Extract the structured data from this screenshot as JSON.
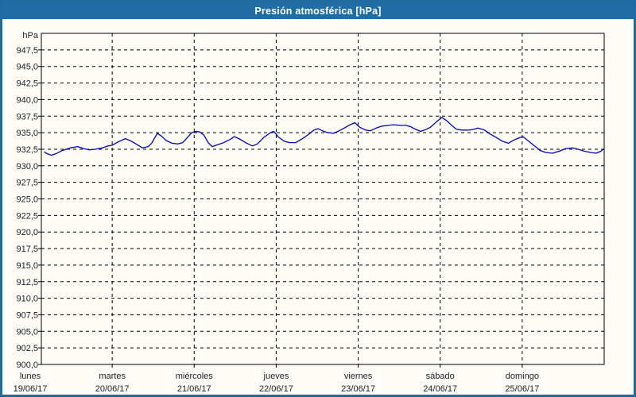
{
  "window": {
    "title": "Presión atmosférica [hPa]"
  },
  "colors": {
    "titlebar_bg": "#1E6EA5",
    "window_border": "#1E6C9F",
    "background": "#FDFDF5",
    "line": "#0000C8",
    "grid": "#000000",
    "text": "#20202A",
    "title_text": "#FFFFFF"
  },
  "chart_data": {
    "type": "line",
    "title": "Presión atmosférica [hPa]",
    "y_axis": {
      "label": "hPa",
      "min": 900,
      "max": 950,
      "tick_step": 2.5,
      "tick_labels": [
        "947,5",
        "945,0",
        "942,5",
        "940,0",
        "937,5",
        "935,0",
        "932,5",
        "930,0",
        "927,5",
        "925,0",
        "922,5",
        "920,0",
        "917,5",
        "915,0",
        "912,5",
        "910,0",
        "907,5",
        "905,0",
        "902,5",
        "900,0"
      ]
    },
    "x_axis": {
      "days": [
        {
          "name": "lunes",
          "date": "19/06/17"
        },
        {
          "name": "martes",
          "date": "20/06/17"
        },
        {
          "name": "miércoles",
          "date": "21/06/17"
        },
        {
          "name": "jueves",
          "date": "22/06/17"
        },
        {
          "name": "viernes",
          "date": "23/06/17"
        },
        {
          "name": "sábado",
          "date": "24/06/17"
        },
        {
          "name": "domingo",
          "date": "25/06/17"
        }
      ],
      "grid": true
    },
    "series": [
      {
        "name": "Presión atmosférica",
        "points": [
          [
            0.17,
            932.1
          ],
          [
            0.21,
            931.8
          ],
          [
            0.26,
            931.6
          ],
          [
            0.31,
            931.8
          ],
          [
            0.39,
            932.3
          ],
          [
            0.49,
            932.7
          ],
          [
            0.58,
            932.9
          ],
          [
            0.65,
            932.6
          ],
          [
            0.72,
            932.4
          ],
          [
            0.8,
            932.5
          ],
          [
            0.88,
            932.7
          ],
          [
            0.95,
            933.0
          ],
          [
            1.0,
            933.1
          ],
          [
            1.07,
            933.6
          ],
          [
            1.16,
            934.1
          ],
          [
            1.22,
            933.8
          ],
          [
            1.29,
            933.3
          ],
          [
            1.37,
            932.7
          ],
          [
            1.44,
            932.9
          ],
          [
            1.48,
            933.4
          ],
          [
            1.55,
            934.9
          ],
          [
            1.6,
            934.5
          ],
          [
            1.66,
            933.8
          ],
          [
            1.73,
            933.4
          ],
          [
            1.8,
            933.3
          ],
          [
            1.86,
            933.5
          ],
          [
            1.92,
            934.3
          ],
          [
            1.97,
            935.0
          ],
          [
            2.02,
            935.2
          ],
          [
            2.07,
            935.1
          ],
          [
            2.12,
            934.6
          ],
          [
            2.17,
            933.5
          ],
          [
            2.22,
            932.9
          ],
          [
            2.29,
            933.2
          ],
          [
            2.36,
            933.5
          ],
          [
            2.44,
            934.0
          ],
          [
            2.49,
            934.4
          ],
          [
            2.56,
            934.0
          ],
          [
            2.64,
            933.4
          ],
          [
            2.71,
            933.0
          ],
          [
            2.77,
            933.3
          ],
          [
            2.85,
            934.3
          ],
          [
            2.93,
            935.0
          ],
          [
            2.97,
            935.2
          ],
          [
            3.03,
            934.3
          ],
          [
            3.1,
            933.7
          ],
          [
            3.16,
            933.5
          ],
          [
            3.24,
            933.5
          ],
          [
            3.32,
            934.1
          ],
          [
            3.39,
            934.7
          ],
          [
            3.46,
            935.4
          ],
          [
            3.51,
            935.6
          ],
          [
            3.56,
            935.3
          ],
          [
            3.63,
            935.0
          ],
          [
            3.7,
            934.9
          ],
          [
            3.77,
            935.3
          ],
          [
            3.83,
            935.7
          ],
          [
            3.9,
            936.2
          ],
          [
            3.96,
            936.5
          ],
          [
            4.02,
            935.8
          ],
          [
            4.09,
            935.4
          ],
          [
            4.15,
            935.3
          ],
          [
            4.22,
            935.7
          ],
          [
            4.29,
            936.0
          ],
          [
            4.37,
            936.1
          ],
          [
            4.43,
            936.2
          ],
          [
            4.51,
            936.1
          ],
          [
            4.58,
            936.1
          ],
          [
            4.64,
            935.9
          ],
          [
            4.7,
            935.5
          ],
          [
            4.76,
            935.2
          ],
          [
            4.81,
            935.4
          ],
          [
            4.88,
            935.8
          ],
          [
            4.95,
            936.6
          ],
          [
            5.02,
            937.3
          ],
          [
            5.08,
            936.8
          ],
          [
            5.15,
            936.0
          ],
          [
            5.2,
            935.5
          ],
          [
            5.27,
            935.4
          ],
          [
            5.35,
            935.4
          ],
          [
            5.41,
            935.5
          ],
          [
            5.46,
            935.7
          ],
          [
            5.54,
            935.4
          ],
          [
            5.61,
            934.8
          ],
          [
            5.68,
            934.3
          ],
          [
            5.76,
            933.7
          ],
          [
            5.83,
            933.4
          ],
          [
            5.9,
            933.9
          ],
          [
            5.98,
            934.3
          ],
          [
            6.01,
            934.4
          ],
          [
            6.07,
            933.8
          ],
          [
            6.15,
            933.0
          ],
          [
            6.22,
            932.3
          ],
          [
            6.29,
            932.0
          ],
          [
            6.37,
            931.9
          ],
          [
            6.45,
            932.2
          ],
          [
            6.53,
            932.6
          ],
          [
            6.61,
            932.7
          ],
          [
            6.68,
            932.5
          ],
          [
            6.76,
            932.2
          ],
          [
            6.84,
            932.0
          ],
          [
            6.9,
            931.9
          ],
          [
            6.96,
            932.2
          ],
          [
            7.0,
            932.6
          ]
        ]
      }
    ]
  }
}
